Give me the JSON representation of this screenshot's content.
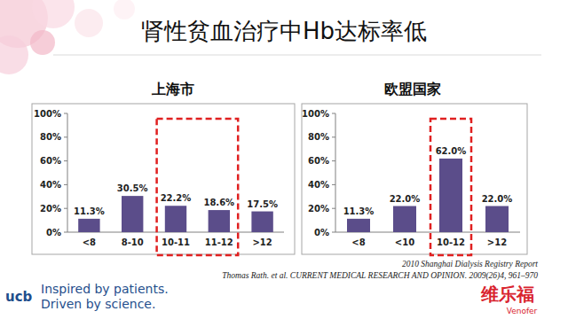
{
  "slide": {
    "title": "肾性贫血治疗中Hb达标率低",
    "references": [
      "2010 Shanghai Dialysis Registry Report",
      "Thomas Rath. et al. CURRENT MEDICAL RESEARCH AND OPINION. 2009(26)4, 961–970"
    ],
    "logo": "ucb",
    "tagline": [
      "Inspired by patients.",
      "Driven by science."
    ],
    "brand": "维乐福",
    "brand_en": "Venofer"
  },
  "chart_data": [
    {
      "type": "bar",
      "title": "上海市",
      "categories": [
        "<8",
        "8-10",
        "10-11",
        "11-12",
        ">12"
      ],
      "values": [
        11.3,
        30.5,
        22.2,
        18.6,
        17.5
      ],
      "value_labels": [
        "11.3%",
        "30.5%",
        "22.2%",
        "18.6%",
        "17.5%"
      ],
      "color": "#5b4d8a",
      "data_labels": true,
      "grid": false,
      "ylim": [
        0,
        100
      ],
      "yticks": [
        {
          "value": 0,
          "label": "0%"
        },
        {
          "value": 20,
          "label": "20%"
        },
        {
          "value": 40,
          "label": "40%"
        },
        {
          "value": 60,
          "label": "60%"
        },
        {
          "value": 80,
          "label": "80%"
        },
        {
          "value": 100,
          "label": "100%"
        }
      ]
    },
    {
      "type": "bar",
      "title": "欧盟国家",
      "categories": [
        "<8",
        "<10",
        "10-12",
        ">12"
      ],
      "values": [
        11.3,
        22.0,
        62.0,
        22.0
      ],
      "value_labels": [
        "11.3%",
        "22.0%",
        "62.0%",
        "22.0%"
      ],
      "color": "#5b4d8a",
      "data_labels": true,
      "grid": false,
      "ylim": [
        0,
        100
      ],
      "yticks": [
        {
          "value": 0,
          "label": "0%"
        },
        {
          "value": 20,
          "label": "20%"
        },
        {
          "value": 40,
          "label": "40%"
        },
        {
          "value": 60,
          "label": "60%"
        },
        {
          "value": 80,
          "label": "80%"
        },
        {
          "value": 100,
          "label": "100%"
        }
      ]
    }
  ]
}
